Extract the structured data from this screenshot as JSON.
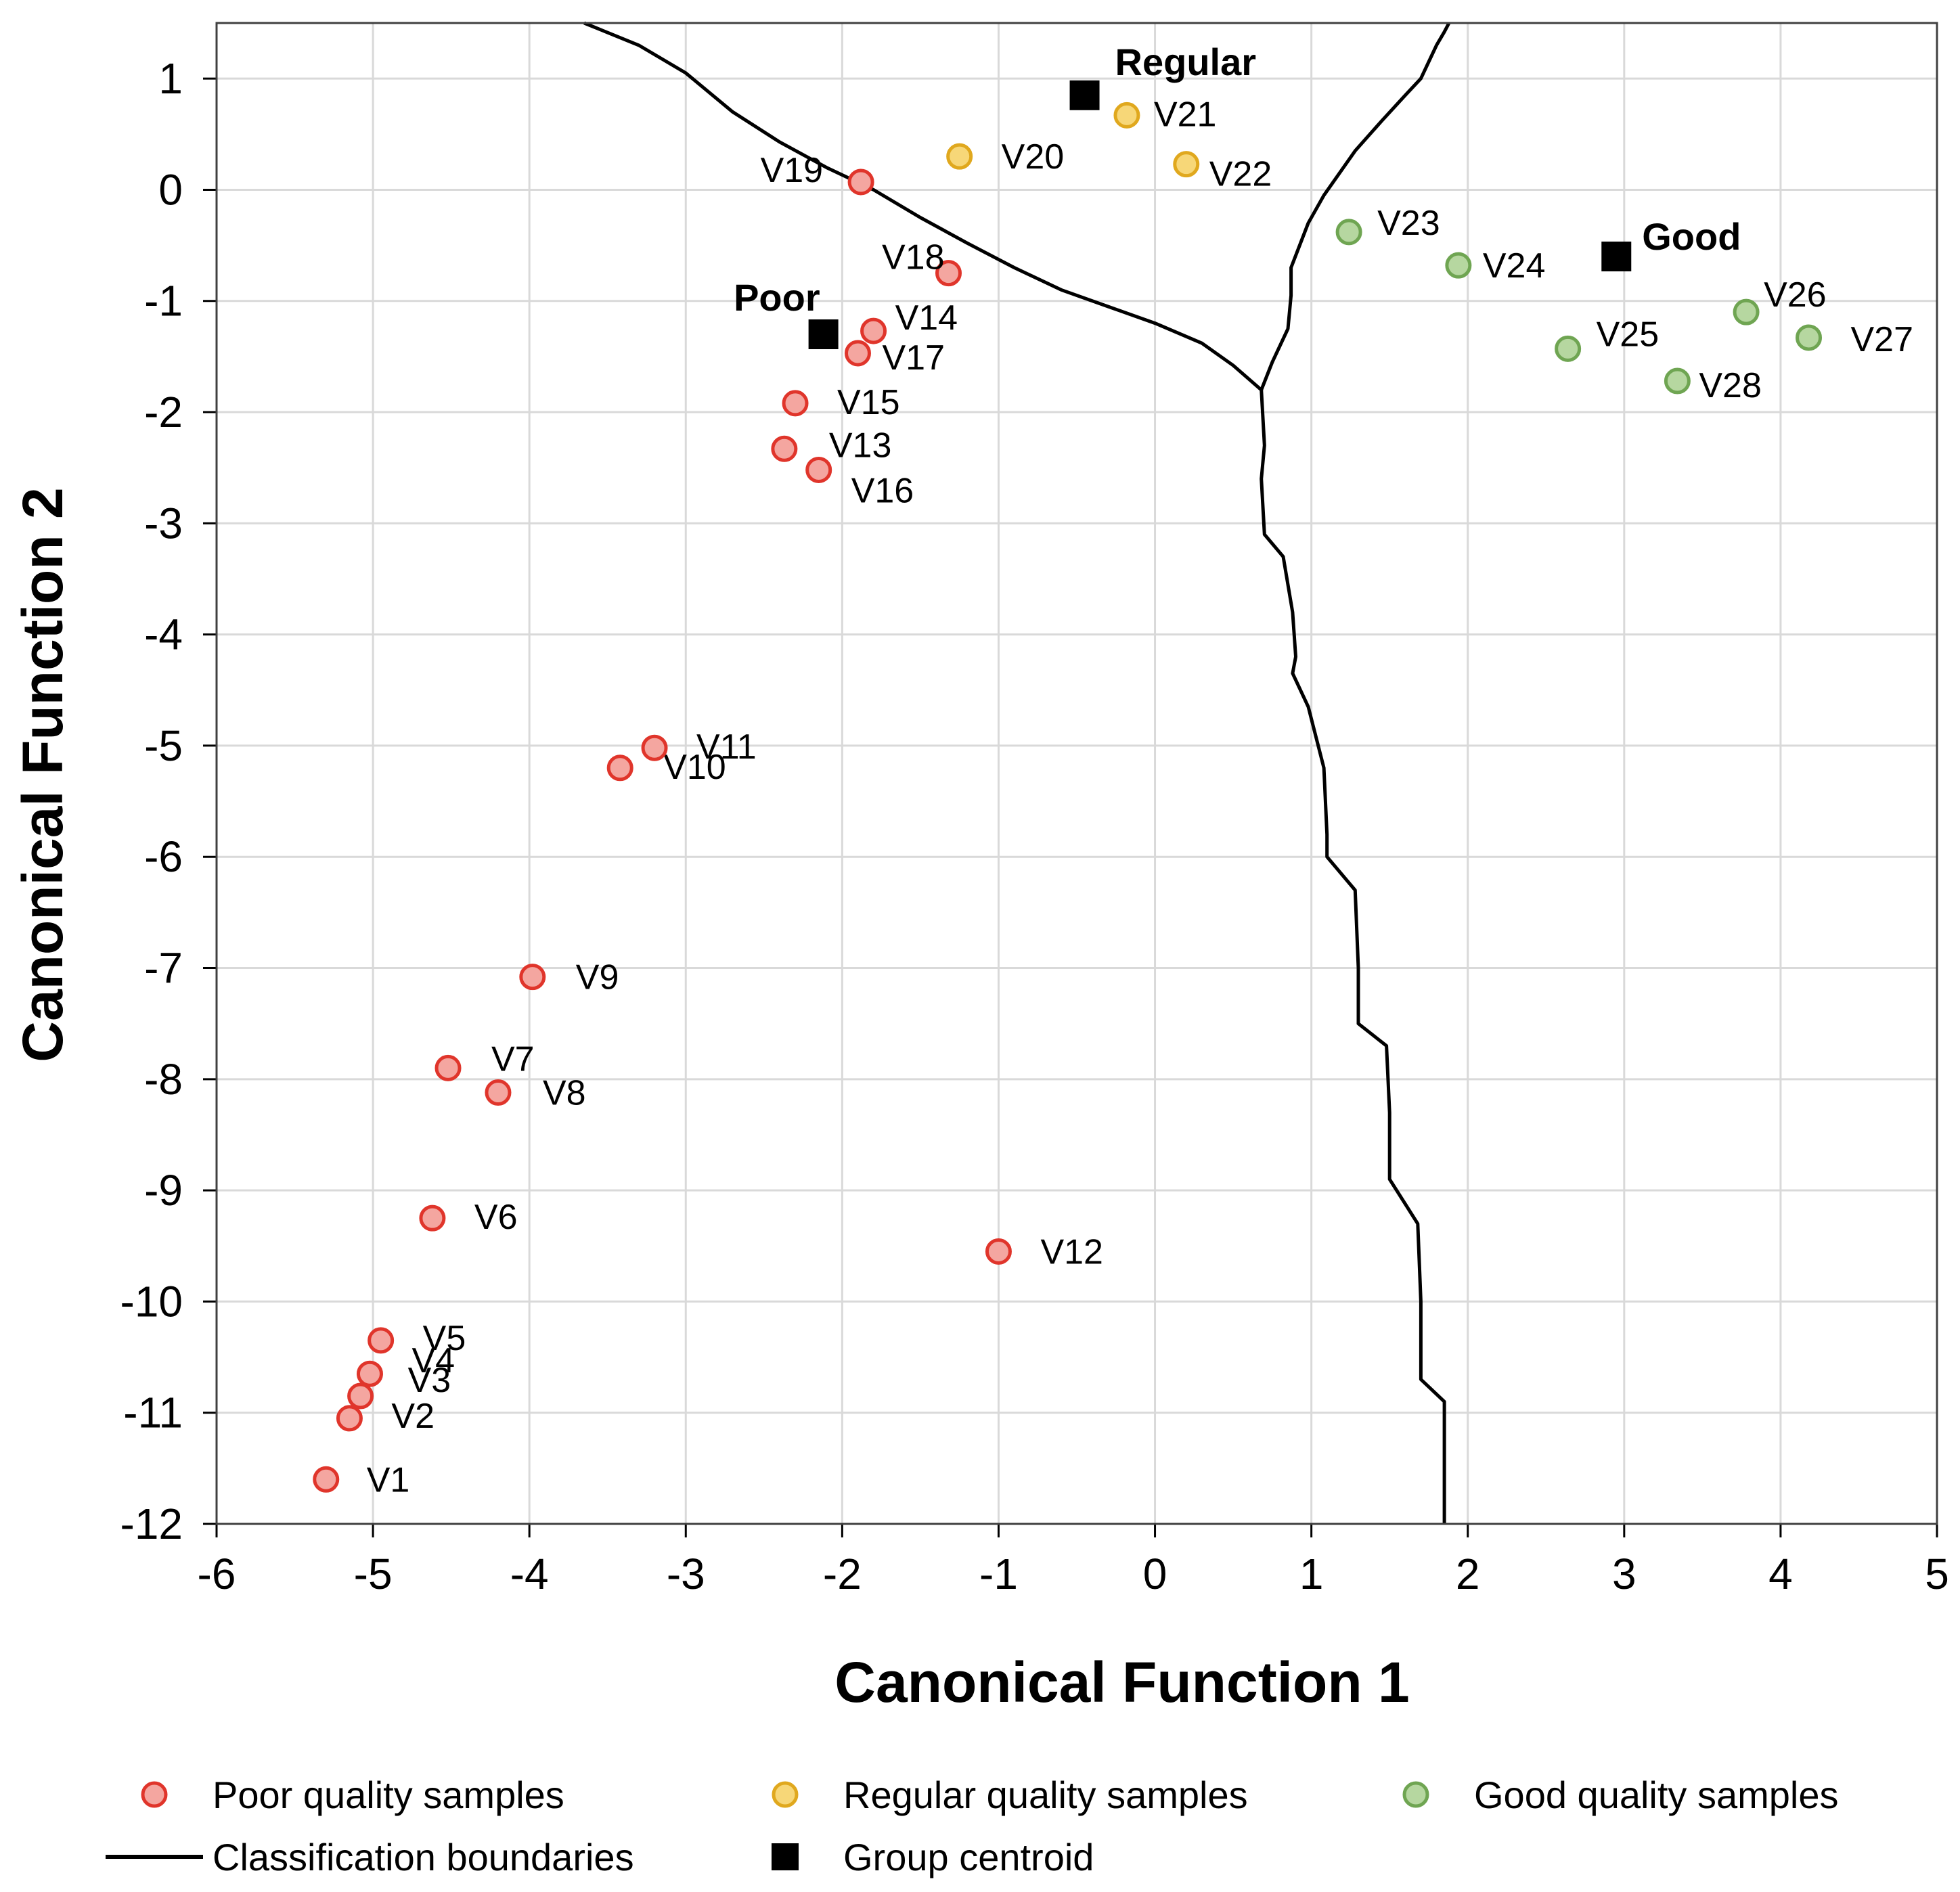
{
  "chart_data": {
    "type": "scatter",
    "xlabel": "Canonical Function 1",
    "ylabel": "Canonical Function 2",
    "xlim": [
      -6,
      5
    ],
    "ylim": [
      -12,
      1.5
    ],
    "xticks": [
      -6,
      -5,
      -4,
      -3,
      -2,
      -1,
      0,
      1,
      2,
      3,
      4,
      5
    ],
    "yticks": [
      1,
      0,
      -1,
      -2,
      -3,
      -4,
      -5,
      -6,
      -7,
      -8,
      -9,
      -10,
      -11,
      -12
    ],
    "grid": true,
    "colors": {
      "poor_fill": "#F4A6A0",
      "poor_edge": "#E0352B",
      "regular_fill": "#F7D778",
      "regular_edge": "#E0A81E",
      "good_fill": "#B6D7A0",
      "good_edge": "#6FA552",
      "centroid": "#000000",
      "boundary": "#000000",
      "grid": "#D9D9D9"
    },
    "series": [
      {
        "name": "Poor quality samples",
        "key": "poor",
        "points": [
          {
            "label": "V1",
            "x": -5.3,
            "y": -11.6
          },
          {
            "label": "V2",
            "x": -5.15,
            "y": -11.05
          },
          {
            "label": "V3",
            "x": -5.08,
            "y": -10.85
          },
          {
            "label": "V4",
            "x": -5.02,
            "y": -10.65
          },
          {
            "label": "V5",
            "x": -4.95,
            "y": -10.35
          },
          {
            "label": "V6",
            "x": -4.62,
            "y": -9.25
          },
          {
            "label": "V7",
            "x": -4.52,
            "y": -7.9
          },
          {
            "label": "V8",
            "x": -4.2,
            "y": -8.12
          },
          {
            "label": "V9",
            "x": -3.98,
            "y": -7.08
          },
          {
            "label": "V10",
            "x": -3.42,
            "y": -5.2
          },
          {
            "label": "V11",
            "x": -3.2,
            "y": -5.02
          },
          {
            "label": "V12",
            "x": -1.0,
            "y": -9.55
          },
          {
            "label": "V13",
            "x": -2.37,
            "y": -2.33
          },
          {
            "label": "V14",
            "x": -1.8,
            "y": -1.27
          },
          {
            "label": "V15",
            "x": -2.3,
            "y": -1.92
          },
          {
            "label": "V16",
            "x": -2.15,
            "y": -2.52
          },
          {
            "label": "V17",
            "x": -1.9,
            "y": -1.47
          },
          {
            "label": "V18",
            "x": -1.32,
            "y": -0.75
          },
          {
            "label": "V19",
            "x": -1.88,
            "y": 0.07
          }
        ]
      },
      {
        "name": "Regular quality samples",
        "key": "regular",
        "points": [
          {
            "label": "V20",
            "x": -1.25,
            "y": 0.3
          },
          {
            "label": "V21",
            "x": -0.18,
            "y": 0.67
          },
          {
            "label": "V22",
            "x": 0.2,
            "y": 0.23
          }
        ]
      },
      {
        "name": "Good quality samples",
        "key": "good",
        "points": [
          {
            "label": "V23",
            "x": 1.24,
            "y": -0.38
          },
          {
            "label": "V24",
            "x": 1.94,
            "y": -0.68
          },
          {
            "label": "V25",
            "x": 2.64,
            "y": -1.43
          },
          {
            "label": "V26",
            "x": 3.78,
            "y": -1.1
          },
          {
            "label": "V27",
            "x": 4.18,
            "y": -1.33
          },
          {
            "label": "V28",
            "x": 3.34,
            "y": -1.72
          }
        ]
      }
    ],
    "centroids": [
      {
        "label": "Regular",
        "x": -0.45,
        "y": 0.85
      },
      {
        "label": "Good",
        "x": 2.95,
        "y": -0.6
      },
      {
        "label": "Poor",
        "x": -2.12,
        "y": -1.3
      }
    ],
    "boundaries": [
      {
        "name": "poor-regular",
        "x": [
          -3.65,
          -3.3,
          -3.0,
          -2.7,
          -2.4,
          -2.1,
          -1.8,
          -1.5,
          -1.2,
          -0.9,
          -0.6,
          -0.3,
          0.0,
          0.3,
          0.5,
          0.68
        ],
        "y": [
          1.5,
          1.3,
          1.05,
          0.7,
          0.43,
          0.2,
          0.0,
          -0.25,
          -0.48,
          -0.7,
          -0.9,
          -1.05,
          -1.2,
          -1.38,
          -1.58,
          -1.8
        ]
      },
      {
        "name": "regular-good",
        "x": [
          0.68,
          0.75,
          0.85,
          0.87,
          0.87,
          0.98,
          1.08,
          1.18,
          1.28,
          1.45,
          1.6,
          1.7,
          1.8,
          1.85,
          1.88
        ],
        "y": [
          -1.8,
          -1.55,
          -1.25,
          -0.95,
          -0.7,
          -0.3,
          -0.05,
          0.15,
          0.35,
          0.62,
          0.85,
          1.0,
          1.3,
          1.42,
          1.5
        ]
      },
      {
        "name": "poor-good",
        "x": [
          0.68,
          0.7,
          0.68,
          0.7,
          0.82,
          0.88,
          0.9,
          0.88,
          0.98,
          1.08,
          1.1,
          1.1,
          1.28,
          1.3,
          1.3,
          1.48,
          1.5,
          1.5,
          1.68,
          1.7,
          1.7,
          1.85,
          1.85,
          1.85
        ],
        "y": [
          -1.8,
          -2.3,
          -2.6,
          -3.1,
          -3.3,
          -3.8,
          -4.2,
          -4.35,
          -4.65,
          -5.2,
          -5.8,
          -6.0,
          -6.3,
          -7.0,
          -7.5,
          -7.7,
          -8.3,
          -8.9,
          -9.3,
          -10.0,
          -10.7,
          -10.9,
          -11.5,
          -12.0
        ]
      }
    ],
    "legend": {
      "position": "bottom",
      "entries": [
        {
          "label": "Poor quality samples",
          "kind": "poor"
        },
        {
          "label": "Regular quality samples",
          "kind": "regular"
        },
        {
          "label": "Good quality samples",
          "kind": "good"
        },
        {
          "label": "Classification boundaries",
          "kind": "line"
        },
        {
          "label": "Group centroid",
          "kind": "centroid"
        }
      ]
    }
  }
}
